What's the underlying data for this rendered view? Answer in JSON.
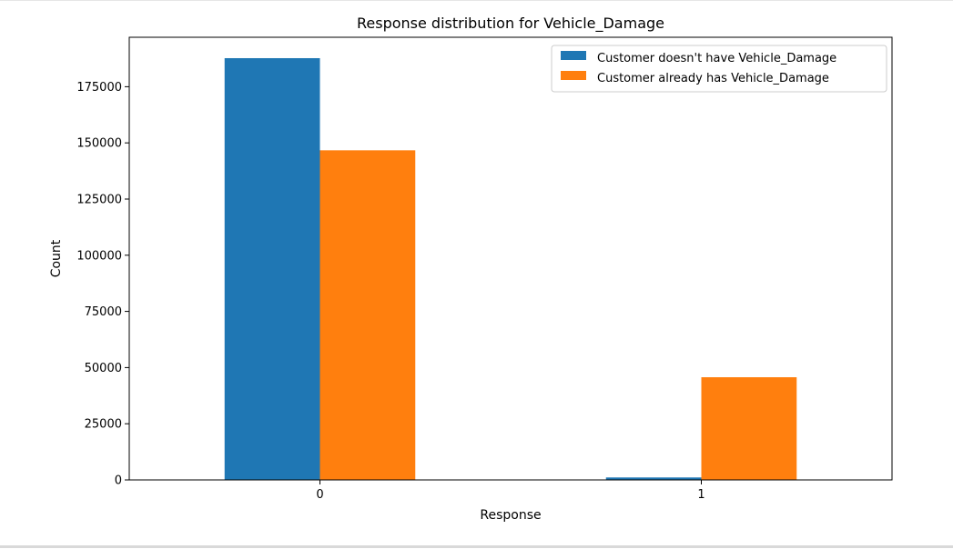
{
  "chart_data": {
    "type": "bar",
    "title": "Response distribution for Vehicle_Damage",
    "xlabel": "Response",
    "ylabel": "Count",
    "categories": [
      "0",
      "1"
    ],
    "series": [
      {
        "name": "Customer doesn't have Vehicle_Damage",
        "color": "#1f77b4",
        "values": [
          187700,
          1100
        ]
      },
      {
        "name": "Customer already has Vehicle_Damage",
        "color": "#ff7f0e",
        "values": [
          146700,
          45700
        ]
      }
    ],
    "ylim": [
      0,
      197000
    ],
    "yticks": [
      0,
      25000,
      50000,
      75000,
      100000,
      125000,
      150000,
      175000
    ],
    "ytick_labels": [
      "0",
      "25000",
      "50000",
      "75000",
      "100000",
      "125000",
      "150000",
      "175000"
    ],
    "grid": false,
    "legend_position": "top-right"
  }
}
